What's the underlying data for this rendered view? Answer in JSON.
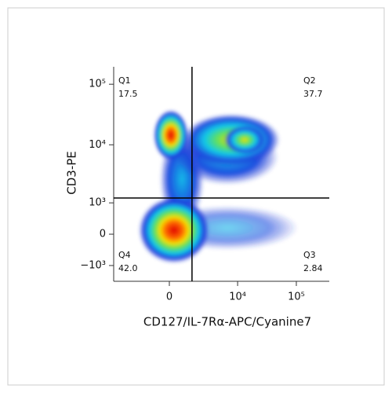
{
  "chart_data": {
    "type": "quadrant",
    "xlabel": "CD127/IL-7Rα-APC/Cyanine7",
    "ylabel": "CD3-PE",
    "xscale": "biexponential",
    "yscale": "biexponential",
    "xlim": [
      -6060,
      363000
    ],
    "ylim": [
      -1950,
      194000
    ],
    "xticks": [
      0,
      {
        "value": 10000,
        "label": "10⁴"
      },
      {
        "value": 100000,
        "label": "10⁵"
      }
    ],
    "yticks": [
      {
        "value": -1000,
        "label": "−10³"
      },
      0,
      {
        "value": 1000,
        "label": "10³"
      },
      {
        "value": 10000,
        "label": "10⁴"
      },
      {
        "value": 100000,
        "label": "10⁵"
      }
    ],
    "gate": {
      "x": 1400,
      "y": 1240
    },
    "quadrants": {
      "names": [
        "Q1",
        "Q2",
        "Q3",
        "Q4"
      ],
      "values": [
        17.5,
        37.7,
        2.84,
        42
      ],
      "value_labels": [
        "17.5",
        "37.7",
        "2.84",
        "42.0"
      ]
    }
  }
}
